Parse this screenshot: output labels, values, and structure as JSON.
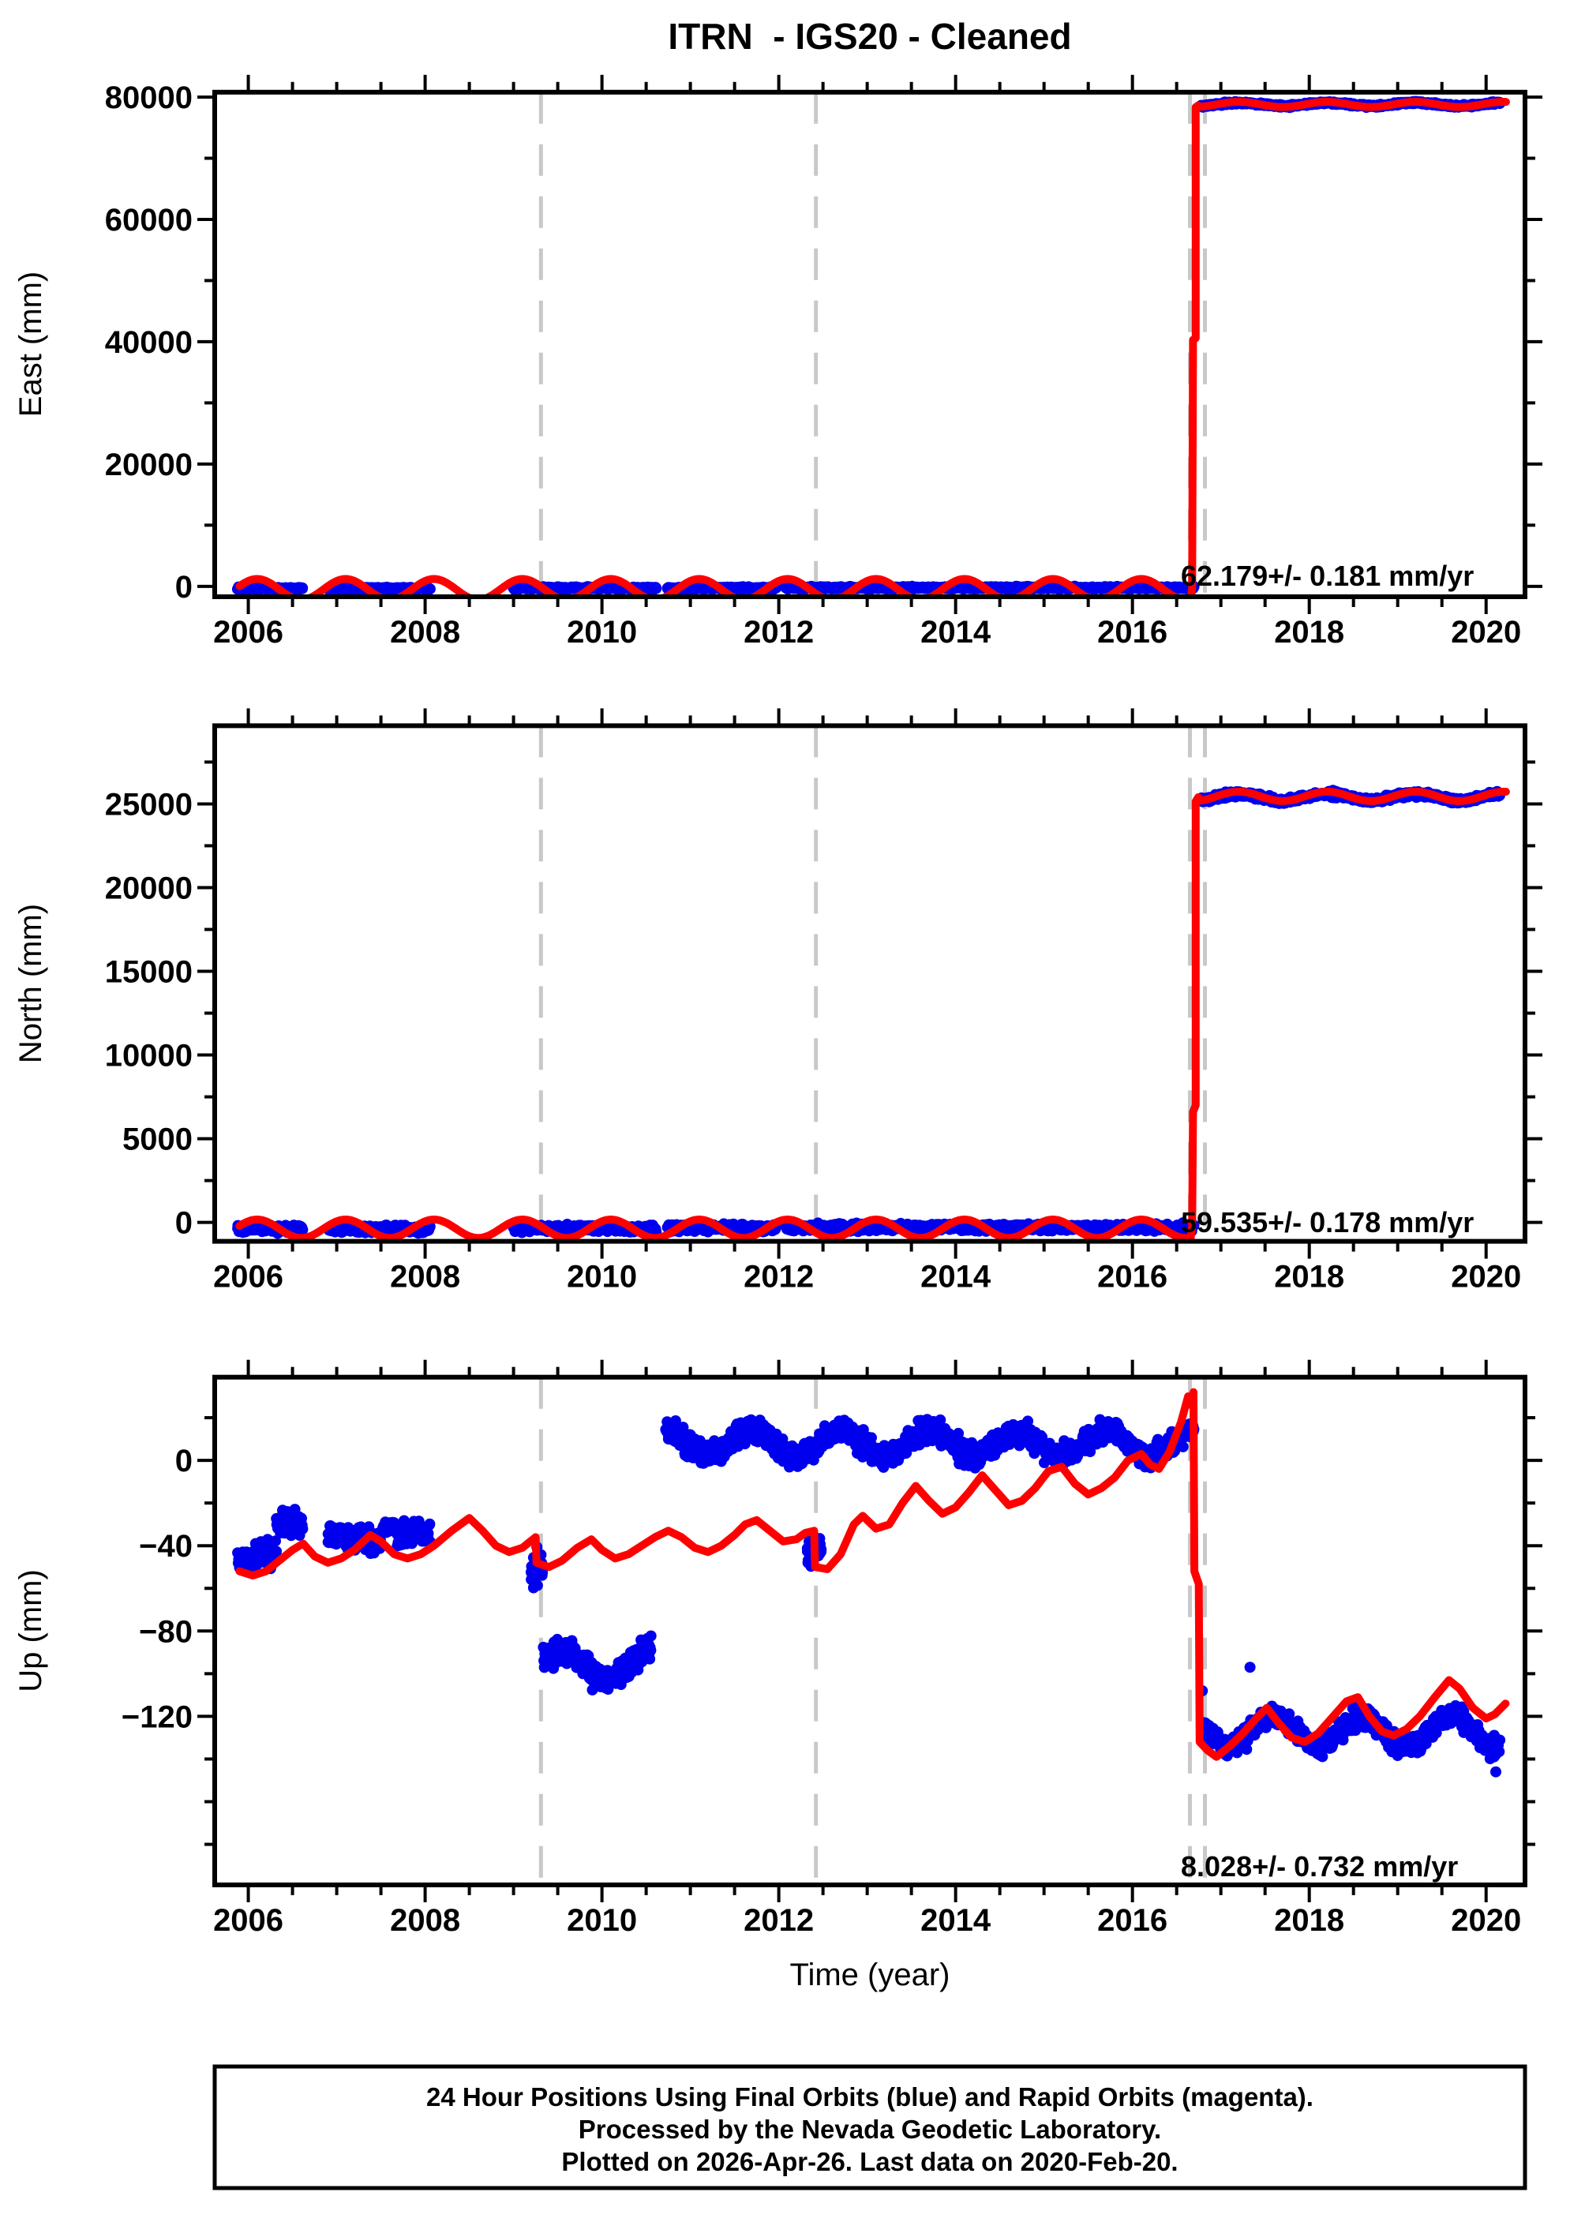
{
  "title": "ITRN  - IGS20 - Cleaned",
  "xlabel": "Time (year)",
  "footer": {
    "lines": [
      "24 Hour Positions Using Final Orbits (blue) and Rapid Orbits (magenta).",
      "Processed by the Nevada Geodetic Laboratory.",
      "Plotted on 2026-Apr-26. Last data on 2020-Feb-20."
    ]
  },
  "colors": {
    "final_orbit_points": "#0000ee",
    "model_fit_line": "#ff0000",
    "event_dashed_line": "#c8c8c8",
    "frame": "#000000"
  },
  "legend_note": "Final Orbits = blue points, Rapid Orbits = magenta points, model fit = red line",
  "chart_data": [
    {
      "type": "scatter",
      "panel": "east",
      "ylabel": "East (mm)",
      "xlim": [
        2005.62,
        2020.44
      ],
      "ylim": [
        -1700,
        80800
      ],
      "yticks": [
        0,
        20000,
        40000,
        60000,
        80000
      ],
      "xticks": [
        2006,
        2008,
        2010,
        2012,
        2014,
        2016,
        2018,
        2020
      ],
      "xminor_step": 0.5,
      "annotation": "62.179+/- 0.181 mm/yr",
      "velocity_mm_yr": 62.179,
      "velocity_sigma": 0.181,
      "jump_year": 2016.7,
      "pre_jump_level_mm": 0,
      "post_jump_level_mm": 78800,
      "scatter": [
        {
          "t0": 2005.88,
          "t1": 2006.62,
          "c": -350,
          "s": 300
        },
        {
          "t0": 2006.9,
          "t1": 2008.06,
          "c": -350,
          "s": 300
        },
        {
          "t0": 2009.0,
          "t1": 2010.62,
          "c": -300,
          "s": 300
        },
        {
          "t0": 2010.74,
          "t1": 2011.98,
          "c": -300,
          "s": 300
        },
        {
          "t0": 2012.08,
          "t1": 2016.7,
          "c": -250,
          "s": 300
        },
        {
          "t0": 2016.78,
          "t1": 2020.16,
          "c": 78800,
          "s": 300,
          "wamp": 250,
          "wphase": 2016.95
        }
      ],
      "outliers": [],
      "red": [
        {
          "type": "wave",
          "t0": 2005.9,
          "t1": 2016.675,
          "mean": -500,
          "amp": 1700,
          "phase": 2005.85
        },
        {
          "type": "pts",
          "pts": [
            [
              2016.675,
              -300
            ],
            [
              2016.685,
              40300
            ],
            [
              2016.715,
              40600
            ],
            [
              2016.715,
              78350
            ],
            [
              2016.745,
              78650
            ]
          ]
        },
        {
          "type": "wave",
          "t0": 2016.745,
          "t1": 2020.24,
          "mean": 78800,
          "amp": 420,
          "phase": 2016.95
        }
      ]
    },
    {
      "type": "scatter",
      "panel": "north",
      "ylabel": "North (mm)",
      "xlim": [
        2005.62,
        2020.44
      ],
      "ylim": [
        -1130,
        29670
      ],
      "yticks": [
        0,
        5000,
        10000,
        15000,
        20000,
        25000
      ],
      "xticks": [
        2006,
        2008,
        2010,
        2012,
        2014,
        2016,
        2018,
        2020
      ],
      "xminor_step": 0.5,
      "annotation": "59.535+/- 0.178 mm/yr",
      "velocity_mm_yr": 59.535,
      "velocity_sigma": 0.178,
      "jump_year": 2016.7,
      "pre_jump_level_mm": 0,
      "post_jump_level_mm": 25400,
      "scatter": [
        {
          "t0": 2005.88,
          "t1": 2006.62,
          "c": -380,
          "s": 300
        },
        {
          "t0": 2006.9,
          "t1": 2008.06,
          "c": -380,
          "s": 300
        },
        {
          "t0": 2009.0,
          "t1": 2010.62,
          "c": -350,
          "s": 300
        },
        {
          "t0": 2010.74,
          "t1": 2011.98,
          "c": -330,
          "s": 300
        },
        {
          "t0": 2012.08,
          "t1": 2016.7,
          "c": -300,
          "s": 300
        },
        {
          "t0": 2016.78,
          "t1": 2020.16,
          "c": 25400,
          "s": 250,
          "wamp": 200,
          "wphase": 2016.95
        }
      ],
      "outliers": [],
      "red": [
        {
          "type": "wave",
          "t0": 2005.9,
          "t1": 2016.675,
          "mean": -380,
          "amp": 550,
          "phase": 2005.85
        },
        {
          "type": "pts",
          "pts": [
            [
              2016.675,
              -250
            ],
            [
              2016.685,
              6600
            ],
            [
              2016.715,
              7000
            ],
            [
              2016.715,
              25150
            ],
            [
              2016.745,
              25400
            ]
          ]
        },
        {
          "type": "wave",
          "t0": 2016.745,
          "t1": 2020.24,
          "mean": 25450,
          "amp": 280,
          "phase": 2016.95
        }
      ]
    },
    {
      "type": "scatter",
      "panel": "up",
      "ylabel": "Up (mm)",
      "xlim": [
        2005.62,
        2020.44
      ],
      "ylim": [
        -199,
        39
      ],
      "yticks": [
        0,
        -40,
        -80,
        -120
      ],
      "xticks": [
        2006,
        2008,
        2010,
        2012,
        2014,
        2016,
        2018,
        2020
      ],
      "xminor_step": 0.5,
      "annotation": "8.028+/- 0.732 mm/yr",
      "velocity_mm_yr": 8.028,
      "velocity_sigma": 0.732,
      "jump_year": 2016.7,
      "scatter": [
        {
          "t0": 2005.88,
          "t1": 2006.08,
          "c": -48,
          "s": 7
        },
        {
          "t0": 2006.08,
          "t1": 2006.32,
          "c": -44,
          "s": 9
        },
        {
          "t0": 2006.32,
          "t1": 2006.62,
          "c": -29,
          "s": 8
        },
        {
          "t0": 2006.9,
          "t1": 2007.28,
          "c": -36,
          "s": 8
        },
        {
          "t0": 2007.3,
          "t1": 2007.5,
          "c": -38,
          "s": 9
        },
        {
          "t0": 2007.52,
          "t1": 2007.66,
          "c": -31,
          "s": 4,
          "density": 0.35
        },
        {
          "t0": 2007.68,
          "t1": 2008.06,
          "c": -34,
          "s": 8
        },
        {
          "t0": 2009.2,
          "t1": 2009.33,
          "c": -50,
          "s": 12,
          "density": 1.5
        },
        {
          "t0": 2009.34,
          "t1": 2010.56,
          "c": -96,
          "s": 9,
          "wamp": 7,
          "wphase": 2009.3
        },
        {
          "t0": 2010.72,
          "t1": 2016.7,
          "c": 8,
          "s": 8,
          "wamp": 6,
          "wphase": 2010.45
        },
        {
          "t0": 2012.32,
          "t1": 2012.48,
          "c": -42,
          "s": 12,
          "density": 1.5
        },
        {
          "t0": 2016.78,
          "t1": 2020.16,
          "c": -127,
          "s": 7,
          "wamp": 7,
          "wphase": 2018.35
        }
      ],
      "outliers": [
        [
          2017.33,
          -97
        ],
        [
          2016.79,
          -108
        ],
        [
          2020.09,
          -139
        ],
        [
          2020.11,
          -146
        ],
        [
          2020.13,
          -133
        ]
      ],
      "red": [
        {
          "type": "pts",
          "pts": [
            [
              2005.9,
              -52
            ],
            [
              2006.05,
              -54
            ],
            [
              2006.2,
              -52
            ],
            [
              2006.35,
              -47
            ],
            [
              2006.5,
              -42
            ],
            [
              2006.62,
              -39
            ],
            [
              2006.75,
              -45
            ],
            [
              2006.9,
              -48
            ],
            [
              2007.05,
              -46
            ],
            [
              2007.2,
              -42
            ],
            [
              2007.38,
              -35
            ],
            [
              2007.5,
              -38
            ],
            [
              2007.65,
              -44
            ],
            [
              2007.8,
              -46
            ],
            [
              2007.95,
              -44
            ],
            [
              2008.1,
              -40
            ],
            [
              2008.3,
              -33
            ],
            [
              2008.5,
              -27
            ],
            [
              2008.65,
              -33
            ],
            [
              2008.8,
              -40
            ],
            [
              2008.95,
              -43
            ],
            [
              2009.1,
              -41
            ],
            [
              2009.25,
              -36
            ],
            [
              2009.26,
              -48
            ],
            [
              2009.4,
              -50
            ],
            [
              2009.55,
              -47
            ],
            [
              2009.72,
              -41
            ],
            [
              2009.88,
              -37
            ],
            [
              2010.0,
              -42
            ],
            [
              2010.15,
              -46
            ],
            [
              2010.3,
              -44
            ],
            [
              2010.45,
              -40
            ],
            [
              2010.6,
              -36
            ],
            [
              2010.75,
              -33
            ],
            [
              2010.9,
              -36
            ],
            [
              2011.05,
              -41
            ],
            [
              2011.2,
              -43
            ],
            [
              2011.35,
              -40
            ],
            [
              2011.5,
              -35
            ],
            [
              2011.62,
              -30
            ],
            [
              2011.75,
              -28
            ],
            [
              2011.9,
              -33
            ],
            [
              2012.05,
              -38
            ],
            [
              2012.2,
              -37
            ],
            [
              2012.3,
              -34
            ],
            [
              2012.4,
              -33
            ],
            [
              2012.41,
              -50
            ],
            [
              2012.55,
              -51
            ],
            [
              2012.7,
              -44
            ],
            [
              2012.85,
              -30
            ],
            [
              2012.95,
              -26
            ],
            [
              2013.1,
              -32
            ],
            [
              2013.25,
              -30
            ],
            [
              2013.4,
              -20
            ],
            [
              2013.55,
              -12
            ],
            [
              2013.7,
              -19
            ],
            [
              2013.85,
              -25
            ],
            [
              2014.0,
              -22
            ],
            [
              2014.15,
              -15
            ],
            [
              2014.3,
              -7
            ],
            [
              2014.45,
              -14
            ],
            [
              2014.6,
              -21
            ],
            [
              2014.75,
              -19
            ],
            [
              2014.9,
              -13
            ],
            [
              2015.05,
              -5
            ],
            [
              2015.2,
              -3
            ],
            [
              2015.35,
              -11
            ],
            [
              2015.5,
              -16
            ],
            [
              2015.65,
              -13
            ],
            [
              2015.8,
              -8
            ],
            [
              2015.95,
              0
            ],
            [
              2016.1,
              3
            ],
            [
              2016.2,
              -2
            ],
            [
              2016.3,
              -4
            ],
            [
              2016.42,
              4
            ],
            [
              2016.55,
              18
            ],
            [
              2016.63,
              30
            ],
            [
              2016.66,
              26
            ],
            [
              2016.69,
              32
            ],
            [
              2016.7,
              -52
            ],
            [
              2016.75,
              -58
            ],
            [
              2016.76,
              -132
            ],
            [
              2016.85,
              -136
            ],
            [
              2016.95,
              -139
            ],
            [
              2017.1,
              -134
            ],
            [
              2017.25,
              -128
            ],
            [
              2017.4,
              -121
            ],
            [
              2017.52,
              -116
            ],
            [
              2017.65,
              -123
            ],
            [
              2017.8,
              -130
            ],
            [
              2017.95,
              -132
            ],
            [
              2018.1,
              -128
            ],
            [
              2018.25,
              -121
            ],
            [
              2018.42,
              -113
            ],
            [
              2018.55,
              -111
            ],
            [
              2018.68,
              -120
            ],
            [
              2018.82,
              -127
            ],
            [
              2018.95,
              -129
            ],
            [
              2019.1,
              -126
            ],
            [
              2019.25,
              -120
            ],
            [
              2019.42,
              -111
            ],
            [
              2019.58,
              -103
            ],
            [
              2019.7,
              -107
            ],
            [
              2019.85,
              -116
            ],
            [
              2020.0,
              -121
            ],
            [
              2020.1,
              -119
            ],
            [
              2020.22,
              -114
            ]
          ]
        }
      ]
    }
  ],
  "dashed_years": [
    2009.31,
    2012.42,
    2016.65,
    2016.82
  ]
}
